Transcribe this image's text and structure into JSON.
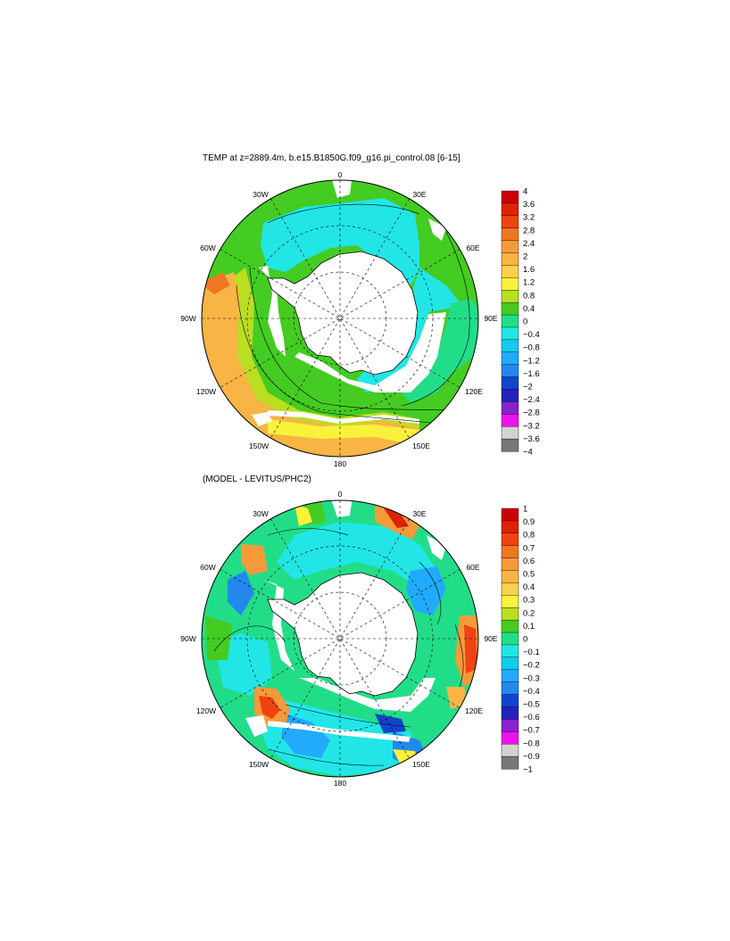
{
  "titles": {
    "main": "TEMP at z=2889.4m, b.e15.B1850G.f09_g16.pi_control.08 [6-15]",
    "difference": "(MODEL - LEVITUS/PHC2)"
  },
  "longitude_labels": [
    "0",
    "30E",
    "60E",
    "90E",
    "120E",
    "150E",
    "180",
    "150W",
    "120W",
    "90W",
    "60W",
    "30W"
  ],
  "maps": [
    {
      "name": "model-temperature",
      "colorbar": {
        "labels": [
          "4",
          "3.6",
          "3.2",
          "2.8",
          "2.4",
          "2",
          "1.6",
          "1.2",
          "0.8",
          "0.4",
          "0",
          "−0.4",
          "−0.8",
          "−1.2",
          "−1.6",
          "−2",
          "−2.4",
          "−2.8",
          "−3.2",
          "−3.6",
          "−4"
        ],
        "colors": [
          "#cc0000",
          "#dd2200",
          "#ee4411",
          "#f07722",
          "#f59a3a",
          "#f8b444",
          "#fbd04e",
          "#f9f23a",
          "#bbdd22",
          "#44cc22",
          "#22dd88",
          "#22e6e6",
          "#11ccee",
          "#22aaff",
          "#2288ee",
          "#1144cc",
          "#2222bb",
          "#8822cc",
          "#ee11ee",
          "#d2d2d2",
          "#777777"
        ]
      }
    },
    {
      "name": "model-minus-levitus",
      "colorbar": {
        "labels": [
          "1",
          "0.9",
          "0.8",
          "0.7",
          "0.6",
          "0.5",
          "0.4",
          "0.3",
          "0.2",
          "0.1",
          "0",
          "−0.1",
          "−0.2",
          "−0.3",
          "−0.4",
          "−0.5",
          "−0.6",
          "−0.7",
          "−0.8",
          "−0.9",
          "−1"
        ],
        "colors": [
          "#cc0000",
          "#dd2200",
          "#ee4411",
          "#f07722",
          "#f59a3a",
          "#f8b444",
          "#fbd04e",
          "#f9f23a",
          "#bbdd22",
          "#44cc22",
          "#22dd88",
          "#22e6e6",
          "#11ccee",
          "#22aaff",
          "#2288ee",
          "#1144cc",
          "#2222bb",
          "#8822cc",
          "#ee11ee",
          "#d2d2d2",
          "#777777"
        ]
      }
    }
  ]
}
